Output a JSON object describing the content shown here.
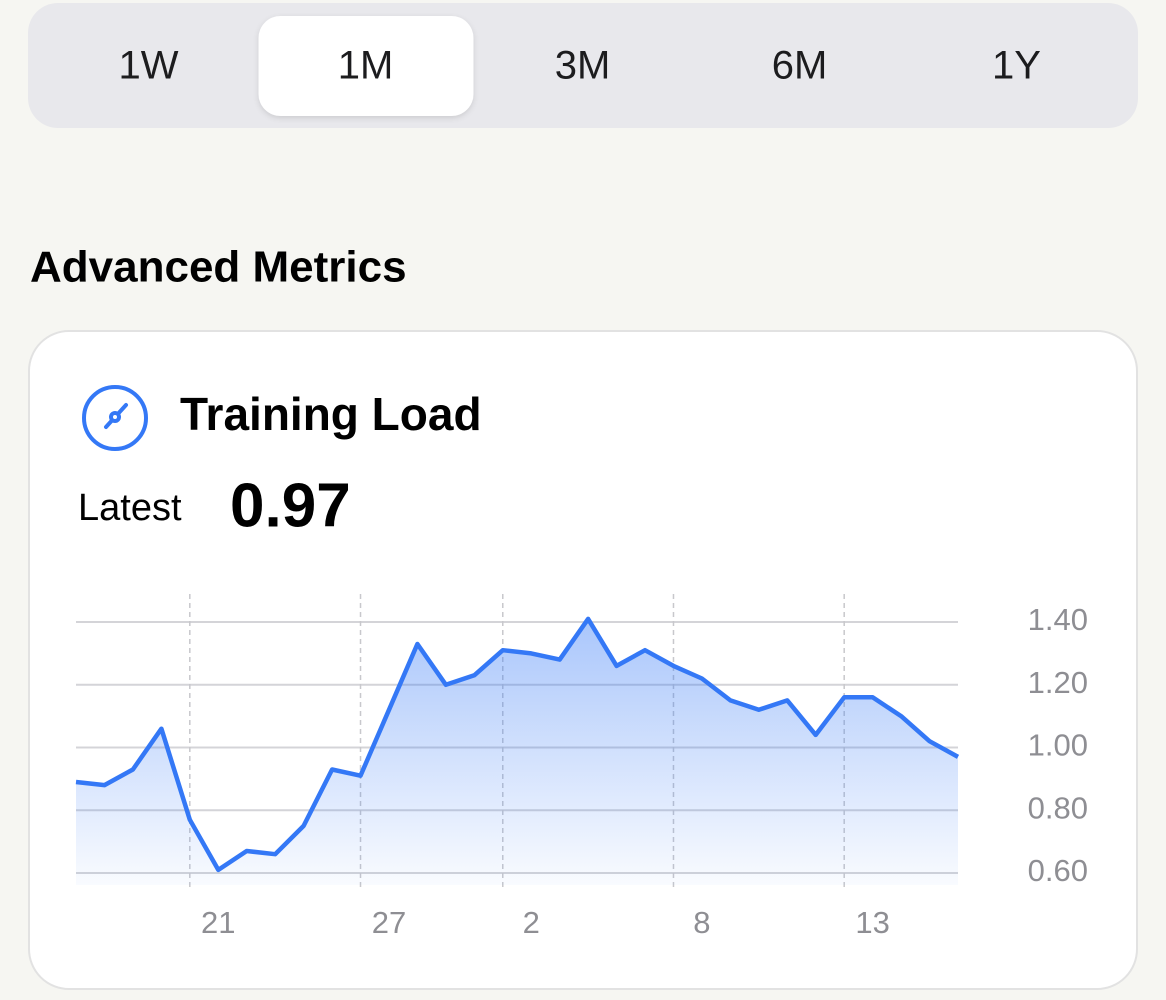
{
  "tabs": [
    "1W",
    "1M",
    "3M",
    "6M",
    "1Y"
  ],
  "selected": 1,
  "section_title": "Advanced Metrics",
  "card": {
    "title": "Training Load",
    "latest_label": "Latest",
    "latest_value": "0.97"
  },
  "chart_data": {
    "type": "area",
    "categories": [
      null,
      null,
      null,
      null,
      null,
      "21",
      null,
      null,
      null,
      null,
      null,
      "27",
      null,
      null,
      null,
      null,
      "2",
      null,
      null,
      null,
      null,
      null,
      "8",
      null,
      null,
      null,
      null,
      null,
      "13",
      null,
      null,
      null
    ],
    "values": [
      0.89,
      0.88,
      0.93,
      1.06,
      0.77,
      0.61,
      0.67,
      0.66,
      0.75,
      0.93,
      0.91,
      1.12,
      1.33,
      1.2,
      1.23,
      1.31,
      1.3,
      1.28,
      1.41,
      1.26,
      1.31,
      1.26,
      1.22,
      1.15,
      1.12,
      1.15,
      1.04,
      1.16,
      1.16,
      1.1,
      1.02,
      0.97
    ],
    "color": "#3478f6",
    "ylim": [
      0.6,
      1.4
    ],
    "yticks": [
      {
        "value": 0.6,
        "label": "0.60"
      },
      {
        "value": 0.8,
        "label": "0.80"
      },
      {
        "value": 1.0,
        "label": "1.00"
      },
      {
        "value": 1.2,
        "label": "1.20"
      },
      {
        "value": 1.4,
        "label": "1.40"
      }
    ],
    "grid": true
  }
}
